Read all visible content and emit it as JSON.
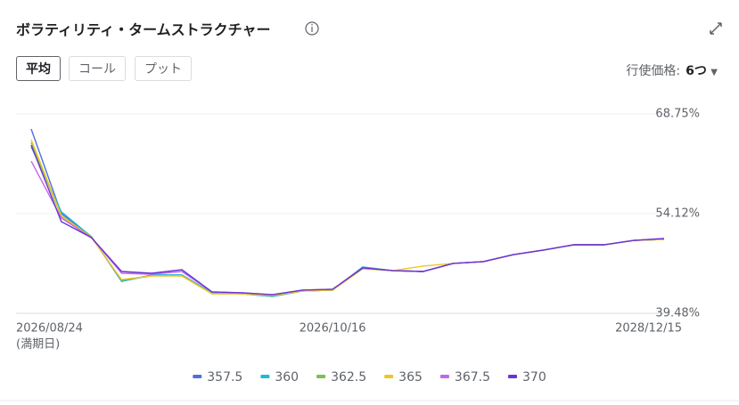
{
  "controls": {
    "buttons": [
      "平均",
      "コール",
      "プット"
    ],
    "strike_label": "行使価格:",
    "strike_value": "6つ"
  },
  "chart_data": {
    "type": "line",
    "title": "ボラティリティ・タームストラクチャー",
    "categories": [
      "2026/08/24",
      null,
      null,
      null,
      null,
      null,
      null,
      null,
      null,
      null,
      "2026/10/16",
      null,
      null,
      null,
      null,
      null,
      null,
      null,
      null,
      null,
      null,
      "2028/12/15"
    ],
    "x_note": "(満期日)",
    "ylim": [
      39.48,
      68.75
    ],
    "yticks": [
      {
        "value": 39.48,
        "label": "39.48%"
      },
      {
        "value": 54.12,
        "label": "54.12%"
      },
      {
        "value": 68.75,
        "label": "68.75%"
      }
    ],
    "grid": true,
    "series": [
      {
        "name": "357.5",
        "color": "#4e6fe0",
        "values": [
          66.53,
          54.12,
          50.72,
          44.18,
          45.1,
          45.1,
          42.49,
          42.35,
          41.96,
          42.75,
          42.88,
          46.27,
          45.75,
          45.62,
          46.8,
          47.06,
          48.1,
          48.76,
          49.54,
          49.54,
          50.19,
          50.32
        ]
      },
      {
        "name": "360",
        "color": "#1eb8d9",
        "values": [
          63.92,
          54.38,
          50.72,
          44.18,
          45.1,
          45.1,
          42.49,
          42.35,
          41.96,
          42.75,
          42.88,
          46.27,
          45.75,
          45.62,
          46.8,
          47.06,
          48.1,
          48.76,
          49.54,
          49.54,
          50.19,
          50.32
        ]
      },
      {
        "name": "362.5",
        "color": "#7cbf52",
        "values": [
          64.57,
          53.72,
          50.72,
          44.31,
          44.97,
          44.97,
          42.35,
          42.35,
          42.09,
          42.75,
          42.88,
          46.14,
          45.75,
          45.62,
          46.8,
          47.06,
          48.1,
          48.76,
          49.54,
          49.54,
          50.19,
          50.32
        ]
      },
      {
        "name": "365",
        "color": "#f2c523",
        "values": [
          64.96,
          53.85,
          50.59,
          44.44,
          44.97,
          44.97,
          42.35,
          42.35,
          42.09,
          42.75,
          42.88,
          46.01,
          45.75,
          46.41,
          46.8,
          47.06,
          48.1,
          48.76,
          49.54,
          49.54,
          50.19,
          50.32
        ]
      },
      {
        "name": "367.5",
        "color": "#c266ea",
        "values": [
          61.82,
          53.46,
          50.59,
          45.36,
          45.23,
          45.62,
          42.62,
          42.49,
          42.22,
          42.88,
          43.01,
          46.14,
          45.75,
          45.62,
          46.8,
          47.06,
          48.1,
          48.76,
          49.54,
          49.54,
          50.19,
          50.46
        ]
      },
      {
        "name": "370",
        "color": "#6a34d4",
        "values": [
          64.18,
          52.94,
          50.59,
          45.62,
          45.36,
          45.88,
          42.62,
          42.49,
          42.22,
          42.88,
          43.01,
          46.14,
          45.75,
          45.62,
          46.8,
          47.06,
          48.1,
          48.76,
          49.54,
          49.54,
          50.19,
          50.46
        ]
      }
    ]
  }
}
